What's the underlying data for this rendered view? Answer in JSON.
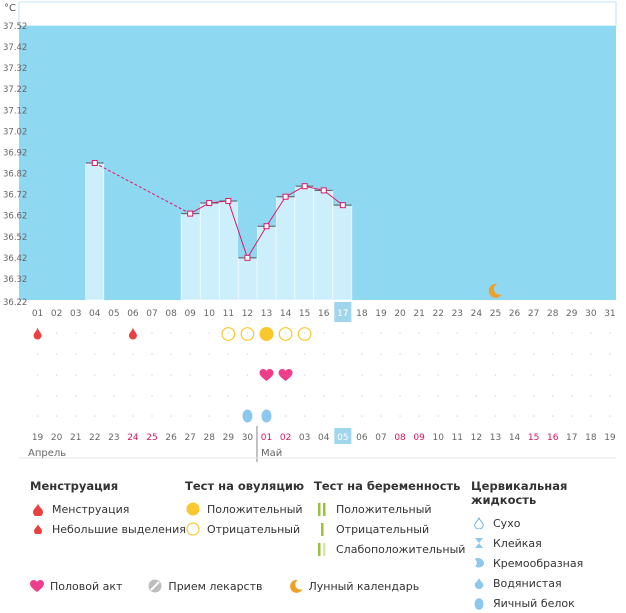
{
  "chart_data": {
    "type": "bar-line",
    "unit": "°C",
    "y_ticks": [
      "36.32",
      "36.42",
      "36.52",
      "36.62",
      "36.72",
      "36.82",
      "36.92",
      "37.02",
      "37.12",
      "37.22",
      "37.32",
      "37.42",
      "37.52"
    ],
    "y_min_label": "36.22",
    "ylim": [
      36.22,
      37.52
    ],
    "cycle_days": [
      "01",
      "02",
      "03",
      "04",
      "05",
      "06",
      "07",
      "08",
      "09",
      "10",
      "11",
      "12",
      "13",
      "14",
      "15",
      "16",
      "17",
      "18",
      "19",
      "20",
      "21",
      "22",
      "23",
      "24",
      "25",
      "26",
      "27",
      "28",
      "29",
      "30",
      "31"
    ],
    "today_day": "17",
    "temperatures": [
      null,
      null,
      null,
      36.87,
      null,
      null,
      null,
      null,
      36.63,
      36.68,
      36.69,
      36.42,
      36.57,
      36.71,
      36.76,
      36.74,
      36.67,
      null,
      null,
      null,
      null,
      null,
      null,
      null,
      null,
      null,
      null,
      null,
      null,
      null,
      null
    ],
    "dates": [
      "19",
      "20",
      "21",
      "22",
      "23",
      "24",
      "25",
      "26",
      "27",
      "28",
      "29",
      "30",
      "01",
      "02",
      "03",
      "04",
      "05",
      "06",
      "07",
      "08",
      "09",
      "10",
      "11",
      "12",
      "13",
      "14",
      "15",
      "16",
      "17",
      "18",
      "19"
    ],
    "red_dates": [
      5,
      6,
      12,
      13,
      19,
      20,
      26,
      27
    ],
    "today_date_index": 16,
    "month_start": "Апрель",
    "month_next": "Май",
    "month_next_index": 12,
    "moon_day_index": 24,
    "menstruation_days": [
      0,
      5
    ],
    "ovulation_positive_days": [
      12
    ],
    "ovulation_negative_days": [
      10,
      11,
      13,
      14
    ],
    "intercourse_days": [
      12,
      13
    ],
    "fluid_egg_white_days": [
      11,
      12
    ]
  },
  "legend": {
    "menstruation": {
      "title": "Менструация",
      "items": [
        "Менструация",
        "Небольшие выделения"
      ]
    },
    "ovulation": {
      "title": "Тест на овуляцию",
      "items": [
        "Положительный",
        "Отрицательный"
      ]
    },
    "pregnancy": {
      "title": "Тест на беременность",
      "items": [
        "Положительный",
        "Отрицательный",
        "Слабоположительный"
      ]
    },
    "cervical": {
      "title": "Цервикальная жидкость",
      "items": [
        "Сухо",
        "Клейкая",
        "Кремообразная",
        "Водянистая",
        "Яичный белок"
      ]
    },
    "bottom": [
      "Половой акт",
      "Прием лекарств",
      "Лунный календарь"
    ]
  },
  "colors": {
    "plot_bg": "#8fd8f2",
    "bar": "#cdeefb",
    "line": "#e0196a",
    "today": "#9fd6ee",
    "red_date": "#d6155f",
    "menstruation": "#e8413f",
    "ovulation_pos": "#f9c82f",
    "intercourse": "#ee3d8a",
    "fluid": "#8cc8ee",
    "pregnancy": "#9cc23c",
    "moon": "#f0a02a"
  }
}
